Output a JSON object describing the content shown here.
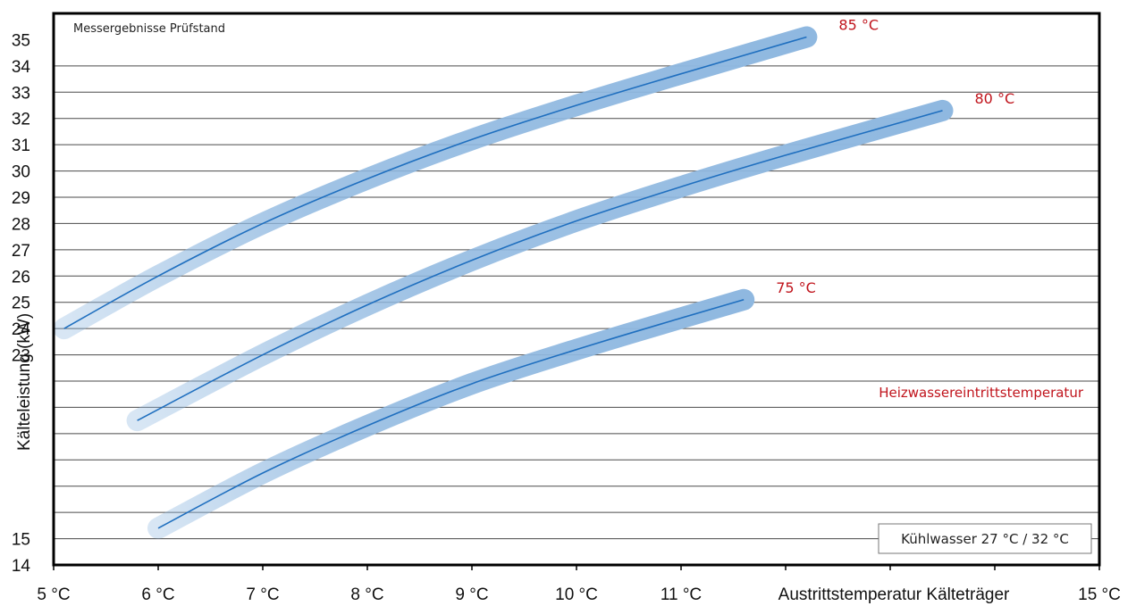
{
  "chart_data": {
    "type": "line",
    "title": "Messergebnisse Prüfstand",
    "ylabel": "Kälteleistung  (kW)",
    "xlabel": "Austrittstemperatur  Kälteträger",
    "x_tick_labels": [
      "5 °C",
      "6 °C",
      "7 °C",
      "8 °C",
      "9 °C",
      "10 °C",
      "11 °C",
      "",
      "",
      "",
      "15 °C"
    ],
    "y_tick_labels": [
      "14",
      "15",
      "",
      "",
      "",
      "",
      "",
      "",
      "23",
      "24",
      "25",
      "26",
      "27",
      "28",
      "29",
      "30",
      "31",
      "32",
      "33",
      "34",
      "35"
    ],
    "xlim": [
      5,
      15
    ],
    "ylim": [
      14,
      35
    ],
    "grid": true,
    "annotation": "Heizwassereintrittstemperatur",
    "info_box": "Kühlwasser 27 °C / 32 °C",
    "series_color": "#1f6fbf",
    "halo_color": "#8fb8e0",
    "label_color": "#c0141c",
    "series": [
      {
        "name": "85 °C",
        "x": [
          5.1,
          6.0,
          7.0,
          8.0,
          9.0,
          10.0,
          11.0,
          12.2
        ],
        "y": [
          23.0,
          25.0,
          27.0,
          28.7,
          30.2,
          31.5,
          32.7,
          34.1
        ]
      },
      {
        "name": "80 °C",
        "x": [
          5.8,
          7.0,
          8.0,
          9.0,
          10.0,
          11.0,
          12.0,
          13.5
        ],
        "y": [
          19.5,
          22.0,
          23.9,
          25.6,
          27.1,
          28.4,
          29.6,
          31.3
        ]
      },
      {
        "name": "75 °C",
        "x": [
          6.0,
          7.0,
          8.0,
          9.0,
          10.0,
          11.0,
          11.6
        ],
        "y": [
          15.4,
          17.5,
          19.3,
          20.9,
          22.2,
          23.4,
          24.1
        ]
      }
    ]
  }
}
